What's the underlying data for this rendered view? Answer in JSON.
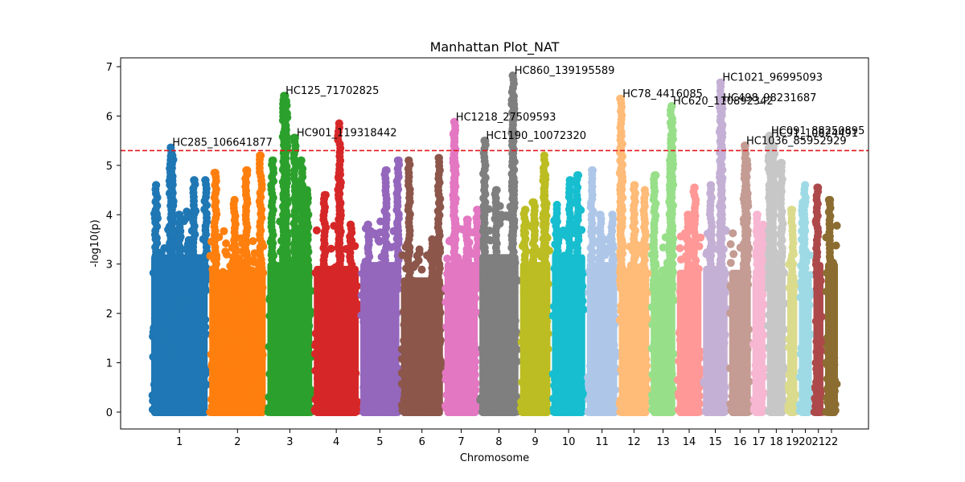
{
  "chart_data": {
    "type": "scatter",
    "title": "Manhattan Plot_NAT",
    "xlabel": "Chromosome",
    "ylabel": "-log10(p)",
    "ylim": [
      -0.35,
      7.2
    ],
    "yticks": [
      0,
      1,
      2,
      3,
      4,
      5,
      6,
      7
    ],
    "threshold": 5.3,
    "threshold_color": "#e31a1c",
    "grid": false,
    "chromosomes": [
      {
        "label": "1",
        "start": 0.0,
        "end": 10.0,
        "color": "#1f77b4",
        "base_max": 4.1,
        "peaks": [
          [
            1.0,
            4.6
          ],
          [
            3.5,
            5.36
          ],
          [
            3.8,
            5.2
          ],
          [
            5.0,
            4.0
          ],
          [
            7.5,
            4.7
          ],
          [
            9.5,
            4.7
          ]
        ]
      },
      {
        "label": "2",
        "start": 10.0,
        "end": 20.0,
        "color": "#ff7f0e",
        "base_max": 3.7,
        "peaks": [
          [
            1.2,
            4.85
          ],
          [
            4.5,
            4.3
          ],
          [
            6.5,
            4.9
          ],
          [
            9.0,
            5.2
          ]
        ]
      },
      {
        "label": "3",
        "start": 20.0,
        "end": 28.0,
        "color": "#2ca02c",
        "base_max": 3.9,
        "peaks": [
          [
            1.0,
            5.1
          ],
          [
            3.0,
            6.41
          ],
          [
            3.4,
            6.3
          ],
          [
            4.9,
            5.56
          ],
          [
            6.0,
            5.1
          ],
          [
            7.0,
            4.5
          ]
        ]
      },
      {
        "label": "4",
        "start": 28.0,
        "end": 36.0,
        "color": "#d62728",
        "base_max": 3.8,
        "peaks": [
          [
            2.0,
            4.4
          ],
          [
            4.5,
            5.85
          ],
          [
            4.6,
            4.9
          ],
          [
            6.5,
            3.8
          ]
        ]
      },
      {
        "label": "5",
        "start": 36.0,
        "end": 43.0,
        "color": "#9467bd",
        "base_max": 3.9,
        "peaks": [
          [
            1.5,
            3.8
          ],
          [
            4.5,
            4.9
          ],
          [
            6.6,
            5.1
          ]
        ]
      },
      {
        "label": "6",
        "start": 43.0,
        "end": 50.5,
        "color": "#8c564b",
        "base_max": 3.5,
        "peaks": [
          [
            1.5,
            5.1
          ],
          [
            5.5,
            3.5
          ],
          [
            6.7,
            5.15
          ]
        ]
      },
      {
        "label": "7",
        "start": 50.5,
        "end": 56.5,
        "color": "#e377c2",
        "base_max": 3.9,
        "peaks": [
          [
            1.8,
            5.88
          ],
          [
            1.9,
            5.65
          ],
          [
            4.0,
            3.9
          ],
          [
            5.8,
            4.1
          ]
        ]
      },
      {
        "label": "8",
        "start": 56.5,
        "end": 63.5,
        "color": "#7f7f7f",
        "base_max": 4.2,
        "peaks": [
          [
            1.0,
            5.5
          ],
          [
            3.0,
            4.5
          ],
          [
            5.9,
            6.82
          ],
          [
            6.0,
            6.4
          ]
        ]
      },
      {
        "label": "9",
        "start": 63.5,
        "end": 69.0,
        "color": "#bcbd22",
        "base_max": 3.9,
        "peaks": [
          [
            1.0,
            4.1
          ],
          [
            2.5,
            4.25
          ],
          [
            4.3,
            5.2
          ],
          [
            4.5,
            4.8
          ]
        ]
      },
      {
        "label": "10",
        "start": 69.0,
        "end": 75.0,
        "color": "#17becf",
        "base_max": 4.1,
        "peaks": [
          [
            1.0,
            4.2
          ],
          [
            3.2,
            4.7
          ],
          [
            4.5,
            4.8
          ]
        ]
      },
      {
        "label": "11",
        "start": 75.0,
        "end": 80.5,
        "color": "#aec7e8",
        "base_max": 3.9,
        "peaks": [
          [
            1.0,
            4.9
          ],
          [
            2.5,
            4.0
          ],
          [
            4.5,
            4.0
          ]
        ]
      },
      {
        "label": "12",
        "start": 80.5,
        "end": 86.0,
        "color": "#ffbb78",
        "base_max": 3.7,
        "peaks": [
          [
            0.5,
            6.35
          ],
          [
            0.6,
            5.6
          ],
          [
            2.8,
            4.6
          ],
          [
            4.6,
            4.5
          ]
        ]
      },
      {
        "label": "13",
        "start": 86.0,
        "end": 90.5,
        "color": "#98df8a",
        "base_max": 3.6,
        "peaks": [
          [
            0.8,
            4.8
          ],
          [
            3.7,
            6.2
          ],
          [
            3.8,
            5.87
          ],
          [
            3.5,
            5.1
          ]
        ]
      },
      {
        "label": "14",
        "start": 90.5,
        "end": 95.0,
        "color": "#ff9896",
        "base_max": 3.7,
        "peaks": [
          [
            2.0,
            4.0
          ],
          [
            3.2,
            4.55
          ]
        ]
      },
      {
        "label": "15",
        "start": 95.0,
        "end": 99.5,
        "color": "#c5b0d5",
        "base_max": 3.8,
        "peaks": [
          [
            1.5,
            4.6
          ],
          [
            3.2,
            6.68
          ],
          [
            3.3,
            6.4
          ]
        ]
      },
      {
        "label": "16",
        "start": 99.5,
        "end": 103.5,
        "color": "#c49c94",
        "base_max": 3.7,
        "peaks": [
          [
            2.8,
            5.4
          ],
          [
            3.2,
            5.1
          ]
        ]
      },
      {
        "label": "17",
        "start": 103.5,
        "end": 106.0,
        "color": "#f7b6d2",
        "base_max": 3.6,
        "peaks": [
          [
            1.0,
            4.0
          ],
          [
            2.0,
            3.8
          ]
        ]
      },
      {
        "label": "18",
        "start": 106.0,
        "end": 109.5,
        "color": "#c7c7c7",
        "base_max": 3.8,
        "peaks": [
          [
            0.6,
            5.6
          ],
          [
            1.3,
            5.4
          ],
          [
            2.7,
            5.05
          ]
        ]
      },
      {
        "label": "19",
        "start": 109.5,
        "end": 111.5,
        "color": "#dbdb8d",
        "base_max": 3.6,
        "peaks": [
          [
            1.0,
            4.1
          ]
        ]
      },
      {
        "label": "20",
        "start": 111.5,
        "end": 114.0,
        "color": "#9edae5",
        "base_max": 3.5,
        "peaks": [
          [
            1.2,
            4.6
          ],
          [
            0.8,
            4.25
          ]
        ]
      },
      {
        "label": "21",
        "start": 114.0,
        "end": 116.0,
        "color": "#ad494a",
        "base_max": 3.9,
        "peaks": [
          [
            0.8,
            4.55
          ]
        ]
      },
      {
        "label": "22",
        "start": 116.0,
        "end": 118.5,
        "color": "#8c6d31",
        "base_max": 3.9,
        "peaks": [
          [
            1.0,
            4.3
          ]
        ]
      }
    ],
    "annotations": [
      {
        "text": "HC285_106641877",
        "x": 3.5,
        "y": 5.36
      },
      {
        "text": "HC125_71702825",
        "x": 23.0,
        "y": 6.41
      },
      {
        "text": "HC901_119318442",
        "x": 24.9,
        "y": 5.56
      },
      {
        "text": "HC1218_27509593",
        "x": 52.3,
        "y": 5.88
      },
      {
        "text": "HC1190_10072320",
        "x": 57.5,
        "y": 5.5
      },
      {
        "text": "HC860_139195589",
        "x": 62.4,
        "y": 6.82
      },
      {
        "text": "HC78_4416085",
        "x": 81.0,
        "y": 6.35
      },
      {
        "text": "HC620_110892342",
        "x": 89.7,
        "y": 6.2
      },
      {
        "text": "HC1021_96995093",
        "x": 98.2,
        "y": 6.68
      },
      {
        "text": "HC498_98231687",
        "x": 98.3,
        "y": 6.27
      },
      {
        "text": "HC1036_85952929",
        "x": 102.3,
        "y": 5.4
      },
      {
        "text": "HC091_88250895",
        "x": 106.6,
        "y": 5.6
      },
      {
        "text": "HC91_10824491",
        "x": 106.6,
        "y": 5.55
      }
    ]
  }
}
